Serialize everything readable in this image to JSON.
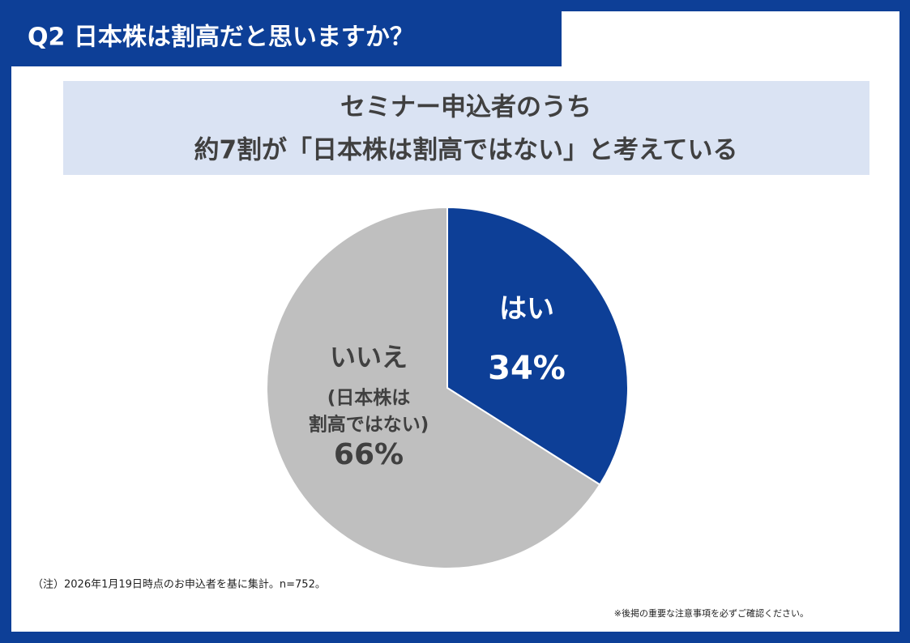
{
  "chart_data": {
    "type": "pie",
    "title": "Q2 日本株は割高だと思いますか？",
    "subtitle": [
      "セミナー申込者のうち",
      "約7割が「日本株は割高ではない」と考えている"
    ],
    "categories": [
      "はい",
      "いいえ"
    ],
    "values": [
      34,
      66
    ],
    "value_labels": [
      "34%",
      "66%"
    ],
    "annotations": [
      "(日本株は",
      "割高ではない)"
    ],
    "colors": [
      "#0d3f97",
      "#bfbfbf"
    ],
    "footnote": "（注）2026年1月19日時点のお申込者を基に集計。n=752。",
    "notice": "※後掲の重要な注意事項を必ずご確認ください。"
  }
}
